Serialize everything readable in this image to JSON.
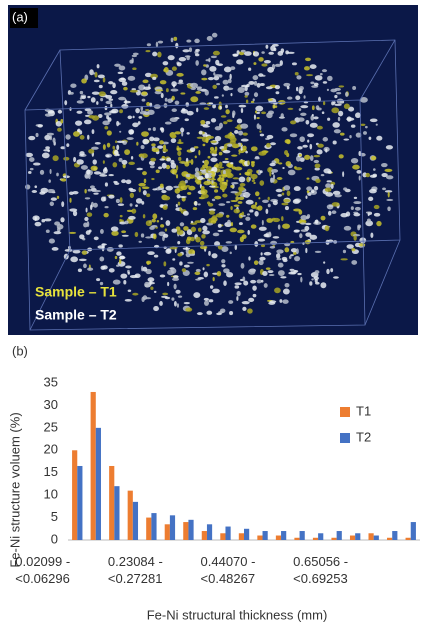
{
  "figure": {
    "panel_a_label": "(a)",
    "sample_labels": [
      {
        "text": "Sample – T1",
        "color": "#e6e23c"
      },
      {
        "text": "Sample – T2",
        "color": "#ffffff"
      }
    ],
    "panel_b_label": "(b)"
  },
  "chart_data": {
    "type": "bar",
    "y_label": "Fe-Ni structure voluem (%)",
    "x_label": "Fe-Ni structural thickness (mm)",
    "categories": [
      "0.02099 - <0.06296",
      null,
      null,
      null,
      null,
      "0.23084 - <0.27281",
      null,
      null,
      null,
      null,
      "0.44070 - <0.48267",
      null,
      null,
      null,
      null,
      "0.65056 - <0.69253",
      null,
      null,
      null
    ],
    "series": [
      {
        "name": "T1",
        "color": "#ed7d31",
        "values": [
          20,
          33,
          16.5,
          11,
          5,
          3.5,
          4,
          2,
          1.5,
          1.5,
          1,
          1,
          0.5,
          0.5,
          0.5,
          1,
          1.5,
          0.5,
          0.5
        ]
      },
      {
        "name": "T2",
        "color": "#4472c4",
        "values": [
          16.5,
          25,
          12,
          8.5,
          6,
          5.5,
          4.5,
          3.5,
          3,
          2.5,
          2,
          2,
          2,
          1.5,
          2,
          1.5,
          1,
          2,
          4
        ]
      }
    ],
    "ylim": [
      0,
      35
    ],
    "yticks": [
      0,
      5,
      10,
      15,
      20,
      25,
      30,
      35
    ],
    "grid": false,
    "legend": "right"
  }
}
